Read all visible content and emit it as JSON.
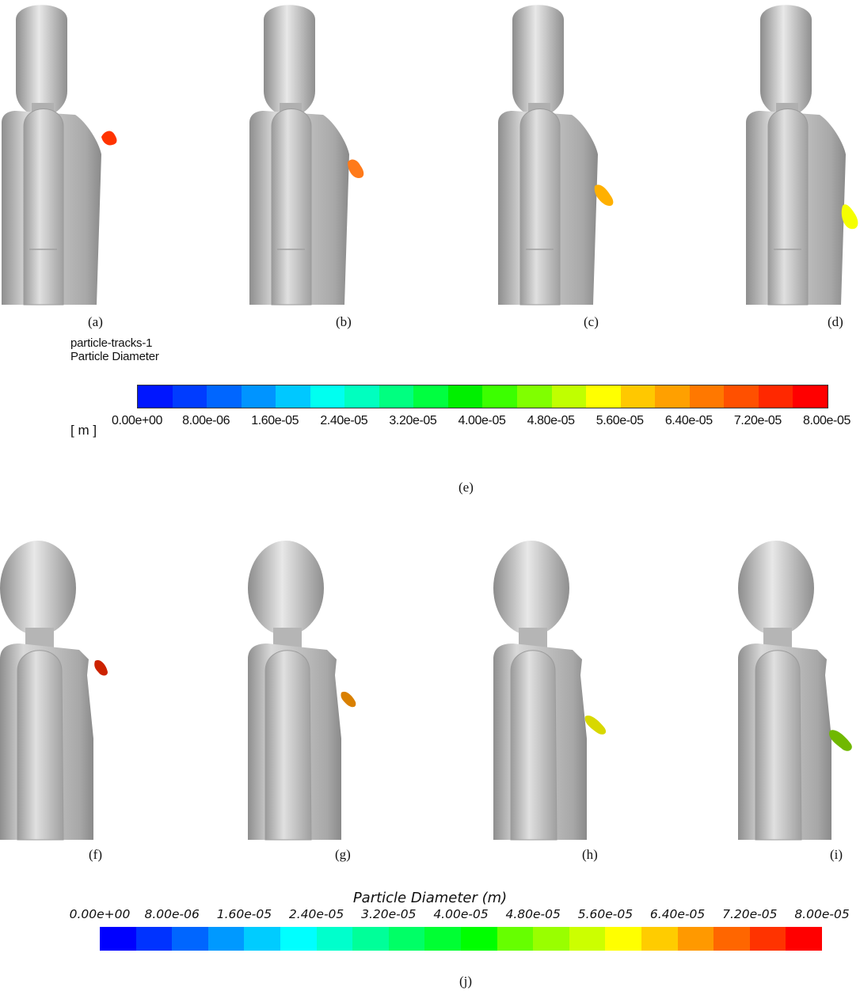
{
  "figure": {
    "captions": [
      "(a)",
      "(b)",
      "(c)",
      "(d)",
      "(e)",
      "(f)",
      "(g)",
      "(h)",
      "(i)",
      "(j)"
    ]
  },
  "legend_top": {
    "line1": "particle-tracks-1",
    "line2": "Particle Diameter",
    "unit": "[ m ]",
    "ticks": [
      "0.00e+00",
      "8.00e-06",
      "1.60e-05",
      "2.40e-05",
      "3.20e-05",
      "4.00e-05",
      "4.80e-05",
      "5.60e-05",
      "6.40e-05",
      "7.20e-05",
      "8.00e-05"
    ],
    "colors": [
      "#0016ff",
      "#003cff",
      "#0066ff",
      "#0094ff",
      "#00c8ff",
      "#00fff0",
      "#00ffbf",
      "#00ff80",
      "#00ff40",
      "#00f000",
      "#3cff00",
      "#80ff00",
      "#c0ff00",
      "#ffff00",
      "#ffc800",
      "#ffa000",
      "#ff7800",
      "#ff5000",
      "#ff2800",
      "#ff0000"
    ]
  },
  "legend_bottom": {
    "title": "Particle Diameter (m)",
    "ticks": [
      "0.00e+00",
      "8.00e-06",
      "1.60e-05",
      "2.40e-05",
      "3.20e-05",
      "4.00e-05",
      "4.80e-05",
      "5.60e-05",
      "6.40e-05",
      "7.20e-05",
      "8.00e-05"
    ],
    "colors": [
      "#0000ff",
      "#0033ff",
      "#0066ff",
      "#0099ff",
      "#00ccff",
      "#00ffff",
      "#00ffcc",
      "#00ff99",
      "#00ff66",
      "#00ff33",
      "#00ff00",
      "#66ff00",
      "#99ff00",
      "#ccff00",
      "#ffff00",
      "#ffcc00",
      "#ff9900",
      "#ff6600",
      "#ff3300",
      "#ff0000"
    ]
  },
  "particle_colors": {
    "a": "#ff3300",
    "b": "#ff7a1a",
    "c": "#ffb000",
    "d": "#f5ff00",
    "f": "#cc2200",
    "g": "#d98000",
    "h": "#d8d800",
    "i": "#70b800"
  }
}
